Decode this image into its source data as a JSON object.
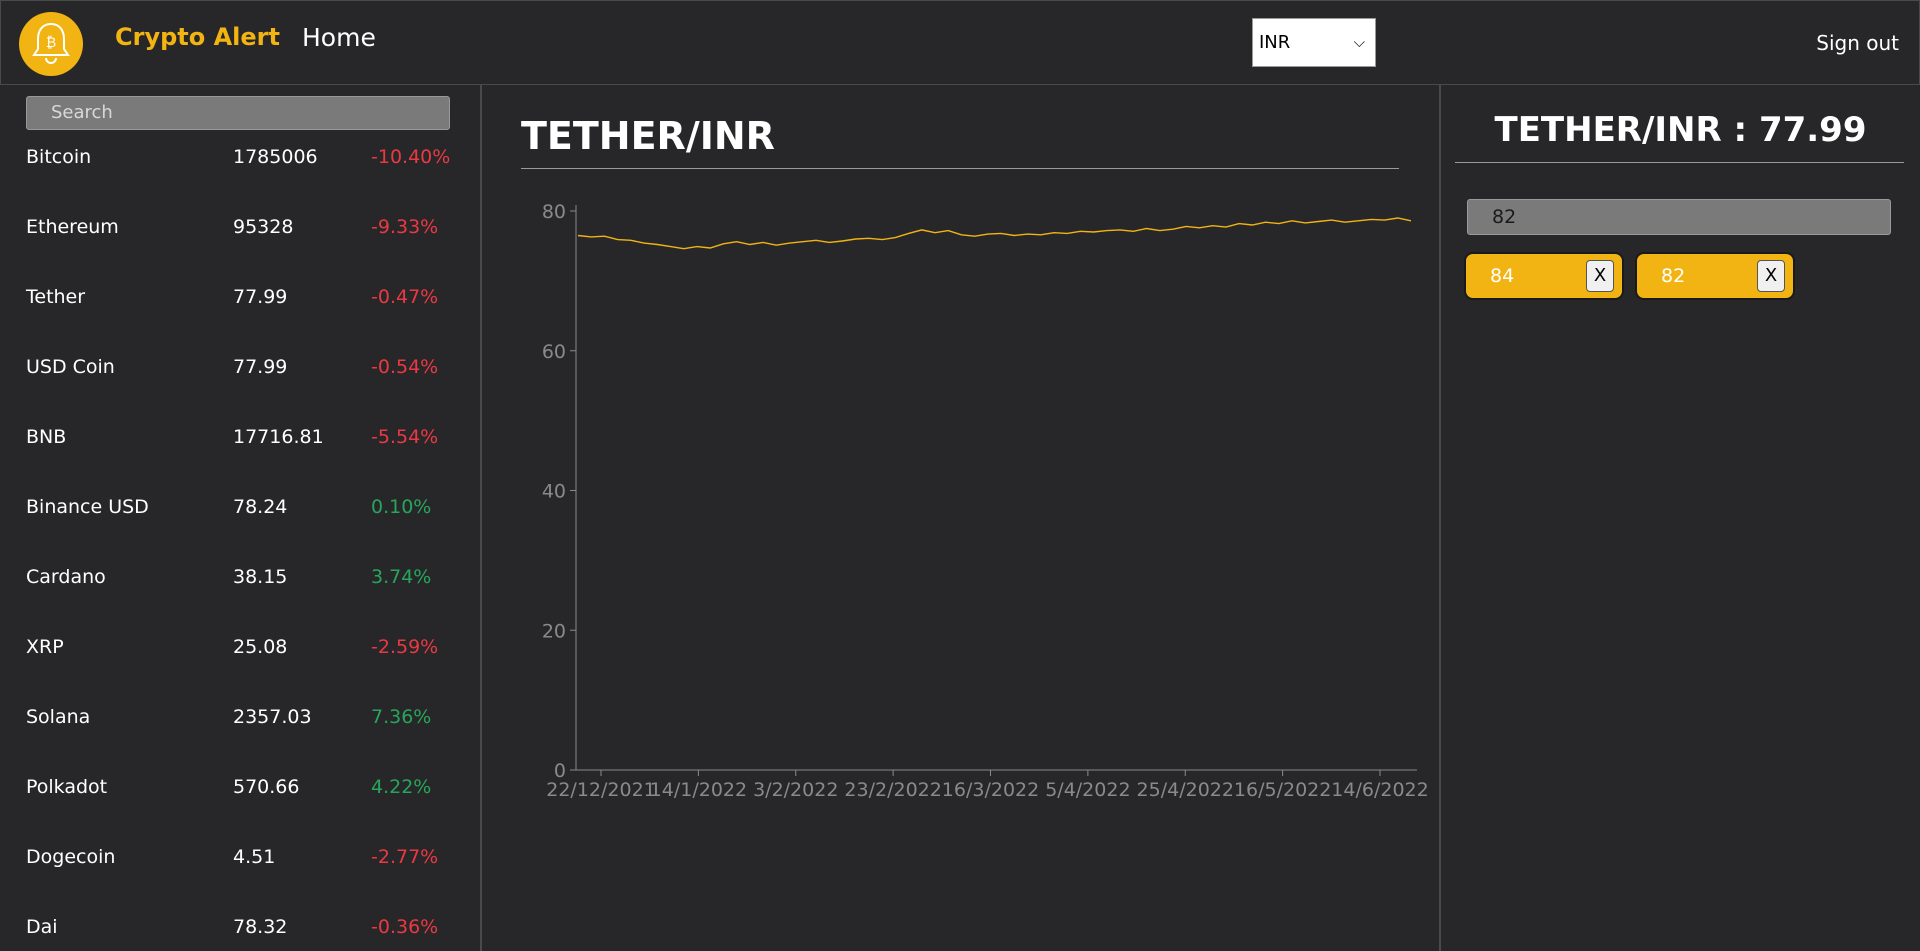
{
  "header": {
    "brand": "Crypto Alert",
    "nav_home": "Home",
    "currency": "INR",
    "signout": "Sign out",
    "accent": "#f2b413"
  },
  "sidebar": {
    "search_placeholder": "Search",
    "coins": [
      {
        "name": "Bitcoin",
        "price": "1785006",
        "change": "-10.40%",
        "direction": "down"
      },
      {
        "name": "Ethereum",
        "price": "95328",
        "change": "-9.33%",
        "direction": "down"
      },
      {
        "name": "Tether",
        "price": "77.99",
        "change": "-0.47%",
        "direction": "down"
      },
      {
        "name": "USD Coin",
        "price": "77.99",
        "change": "-0.54%",
        "direction": "down"
      },
      {
        "name": "BNB",
        "price": "17716.81",
        "change": "-5.54%",
        "direction": "down"
      },
      {
        "name": "Binance USD",
        "price": "78.24",
        "change": "0.10%",
        "direction": "up"
      },
      {
        "name": "Cardano",
        "price": "38.15",
        "change": "3.74%",
        "direction": "up"
      },
      {
        "name": "XRP",
        "price": "25.08",
        "change": "-2.59%",
        "direction": "down"
      },
      {
        "name": "Solana",
        "price": "2357.03",
        "change": "7.36%",
        "direction": "up"
      },
      {
        "name": "Polkadot",
        "price": "570.66",
        "change": "4.22%",
        "direction": "up"
      },
      {
        "name": "Dogecoin",
        "price": "4.51",
        "change": "-2.77%",
        "direction": "down"
      },
      {
        "name": "Dai",
        "price": "78.32",
        "change": "-0.36%",
        "direction": "down"
      }
    ]
  },
  "main": {
    "chart_title": "TETHER/INR"
  },
  "chart_data": {
    "type": "line",
    "title": "TETHER/INR",
    "xlabel": "",
    "ylabel": "",
    "ylim": [
      0,
      80
    ],
    "yticks": [
      0,
      20,
      40,
      60,
      80
    ],
    "xticks": [
      "22/12/2021",
      "14/1/2022",
      "3/2/2022",
      "23/2/2022",
      "16/3/2022",
      "5/4/2022",
      "25/4/2022",
      "16/5/2022",
      "14/6/2022"
    ],
    "x_range": [
      "15/12/2021",
      "23/6/2022"
    ],
    "line_color": "#f2b413",
    "grid": false,
    "series": [
      {
        "values": [
          76.5,
          76.3,
          76.4,
          75.9,
          75.8,
          75.4,
          75.2,
          74.9,
          74.6,
          74.9,
          74.7,
          75.3,
          75.6,
          75.2,
          75.5,
          75.1,
          75.4,
          75.6,
          75.8,
          75.5,
          75.7,
          76.0,
          76.1,
          75.9,
          76.2,
          76.8,
          77.3,
          76.9,
          77.2,
          76.6,
          76.4,
          76.7,
          76.8,
          76.5,
          76.7,
          76.6,
          76.9,
          76.8,
          77.1,
          77.0,
          77.2,
          77.3,
          77.1,
          77.5,
          77.2,
          77.4,
          77.8,
          77.6,
          77.9,
          77.7,
          78.2,
          78.0,
          78.4,
          78.2,
          78.6,
          78.3,
          78.5,
          78.7,
          78.4,
          78.6,
          78.8,
          78.7,
          79.0,
          78.6
        ]
      }
    ]
  },
  "alerts": {
    "title": "TETHER/INR : 77.99",
    "input_value": "82",
    "items": [
      {
        "value": "84",
        "remove_label": "X"
      },
      {
        "value": "82",
        "remove_label": "X"
      }
    ]
  }
}
